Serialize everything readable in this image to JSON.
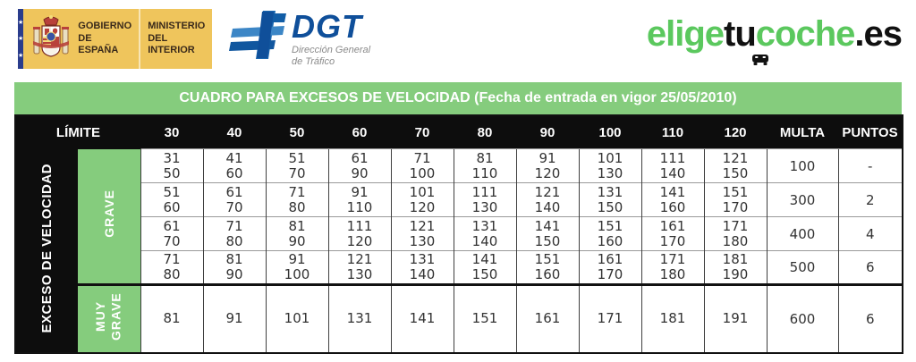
{
  "header": {
    "gov_logo": {
      "line1": "GOBIERNO",
      "line2": "DE ESPAÑA",
      "ministry_line1": "MINISTERIO",
      "ministry_line2": "DEL INTERIOR"
    },
    "dgt_logo": {
      "acronym": "DGT",
      "subtitle_line1": "Dirección General",
      "subtitle_line2": "de Tráfico"
    },
    "site_logo": {
      "part1": "elige",
      "part2": "tu",
      "part3": "coche",
      "part4": ".es"
    }
  },
  "title_bar": {
    "text": "CUADRO PARA EXCESOS DE VELOCIDAD (Fecha de entrada en vigor 25/05/2010)"
  },
  "colors": {
    "accent_green": "#85cc7d",
    "logo_green": "#5bc85e",
    "dgt_blue": "#0f4f9a",
    "gov_yellow": "#efc55c",
    "header_black": "#0d0d0d"
  },
  "chart_data": {
    "type": "table",
    "title": "CUADRO PARA EXCESOS DE VELOCIDAD (Fecha de entrada en vigor 25/05/2010)",
    "limit_label": "LÍMITE",
    "speed_labels": [
      "30",
      "40",
      "50",
      "60",
      "70",
      "80",
      "90",
      "100",
      "110",
      "120"
    ],
    "fine_label": "MULTA",
    "points_label": "PUNTOS",
    "axis_label": "EXCESO DE VELOCIDAD",
    "sections": [
      {
        "label": "GRAVE",
        "rows": [
          {
            "cells": [
              [
                "31",
                "50"
              ],
              [
                "41",
                "60"
              ],
              [
                "51",
                "70"
              ],
              [
                "61",
                "90"
              ],
              [
                "71",
                "100"
              ],
              [
                "81",
                "110"
              ],
              [
                "91",
                "120"
              ],
              [
                "101",
                "130"
              ],
              [
                "111",
                "140"
              ],
              [
                "121",
                "150"
              ]
            ],
            "fine": "100",
            "points": "-"
          },
          {
            "cells": [
              [
                "51",
                "60"
              ],
              [
                "61",
                "70"
              ],
              [
                "71",
                "80"
              ],
              [
                "91",
                "110"
              ],
              [
                "101",
                "120"
              ],
              [
                "111",
                "130"
              ],
              [
                "121",
                "140"
              ],
              [
                "131",
                "150"
              ],
              [
                "141",
                "160"
              ],
              [
                "151",
                "170"
              ]
            ],
            "fine": "300",
            "points": "2"
          },
          {
            "cells": [
              [
                "61",
                "70"
              ],
              [
                "71",
                "80"
              ],
              [
                "81",
                "90"
              ],
              [
                "111",
                "120"
              ],
              [
                "121",
                "130"
              ],
              [
                "131",
                "140"
              ],
              [
                "141",
                "150"
              ],
              [
                "151",
                "160"
              ],
              [
                "161",
                "170"
              ],
              [
                "171",
                "180"
              ]
            ],
            "fine": "400",
            "points": "4"
          },
          {
            "cells": [
              [
                "71",
                "80"
              ],
              [
                "81",
                "90"
              ],
              [
                "91",
                "100"
              ],
              [
                "121",
                "130"
              ],
              [
                "131",
                "140"
              ],
              [
                "141",
                "150"
              ],
              [
                "151",
                "160"
              ],
              [
                "161",
                "170"
              ],
              [
                "171",
                "180"
              ],
              [
                "181",
                "190"
              ]
            ],
            "fine": "500",
            "points": "6"
          }
        ]
      },
      {
        "label": "MUY GRAVE",
        "rows": [
          {
            "cells": [
              "81",
              "91",
              "101",
              "131",
              "141",
              "151",
              "161",
              "171",
              "181",
              "191"
            ],
            "fine": "600",
            "points": "6"
          }
        ]
      }
    ]
  }
}
